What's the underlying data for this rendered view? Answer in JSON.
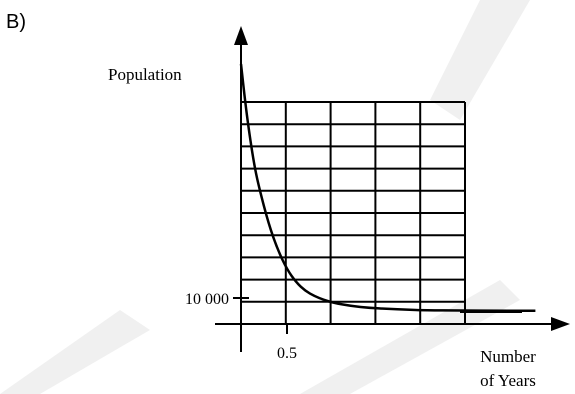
{
  "colors": {
    "background": "#ffffff",
    "ink": "#000000",
    "watermark": "#d9d9d9"
  },
  "chart_data": {
    "type": "line",
    "part_label": "B)",
    "ylabel": "Population",
    "xlabel_line1": "Number",
    "xlabel_line2": "of Years",
    "x_tick_label": "0.5",
    "y_tick_label": "10 000",
    "x_tick_value": 0.5,
    "y_tick_value": 10000,
    "grid": true,
    "grid_columns": 5,
    "grid_rows": 10,
    "arrowheads": true,
    "curve_shape": "exponential-decay",
    "x": [
      0,
      0.05,
      0.1,
      0.15,
      0.2,
      0.3,
      0.4,
      0.5,
      0.6,
      0.7,
      0.8,
      0.9,
      1.0,
      1.2,
      1.4,
      1.6,
      1.8,
      2.0,
      2.4,
      2.8,
      3.2
    ],
    "y": [
      100000,
      84000,
      71000,
      60000,
      52000,
      38500,
      28500,
      21000,
      16000,
      12700,
      10700,
      9300,
      8200,
      6900,
      6200,
      5800,
      5500,
      5300,
      5200,
      5100,
      5100
    ]
  }
}
